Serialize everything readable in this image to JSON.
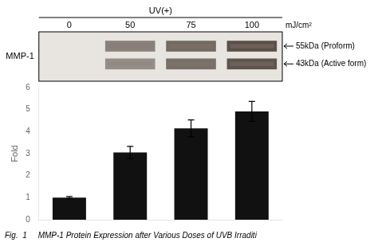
{
  "chart_data": {
    "type": "bar",
    "categories": [
      "0",
      "50",
      "75",
      "100"
    ],
    "values": [
      1.0,
      3.05,
      4.15,
      4.92
    ],
    "errors": [
      0.05,
      0.28,
      0.38,
      0.45
    ],
    "color": "#111111",
    "ylabel": "Fold",
    "ylim": [
      0,
      6
    ],
    "yticks": [
      0,
      1,
      2,
      3,
      4,
      5,
      6
    ],
    "grid": false,
    "tick_labels": "y",
    "blot": {
      "units": "mJ/cm²",
      "group_label": "UV(+)",
      "row_label": "MMP-1",
      "band_labels": [
        "55kDa (Proform)",
        "43kDa (Active form)"
      ],
      "band_intensities": [
        [
          0.0,
          0.55,
          0.68,
          0.82
        ],
        [
          0.0,
          0.48,
          0.65,
          0.8
        ]
      ]
    },
    "caption": "Fig.  1     MMP-1 Protein Expression after Various Doses of UVB Irraditi"
  }
}
